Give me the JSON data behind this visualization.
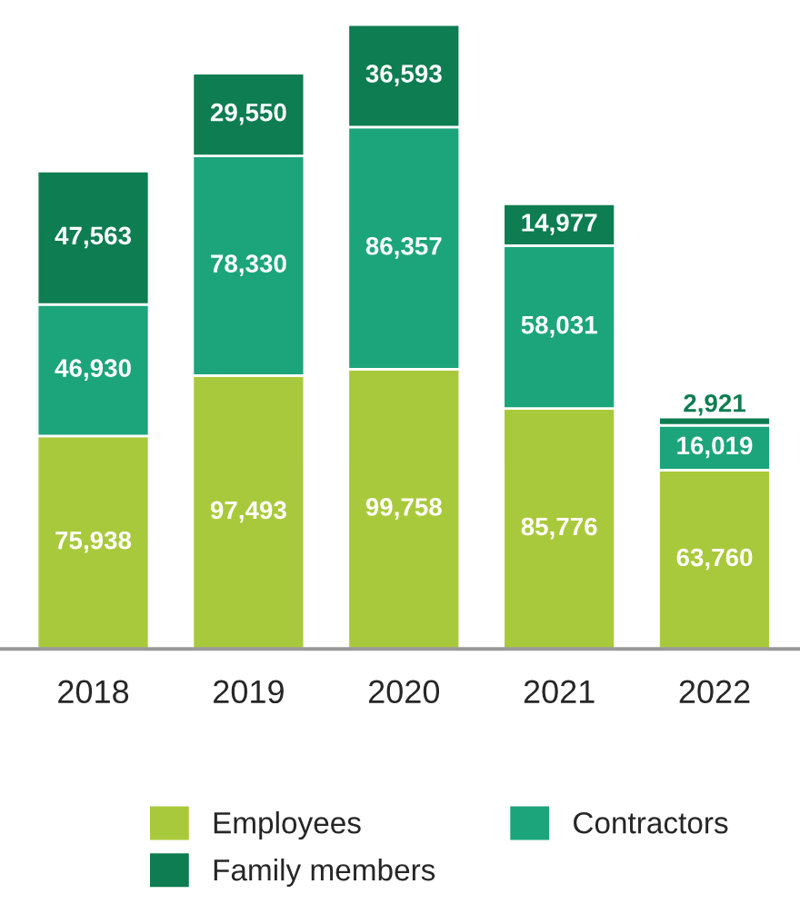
{
  "chart_data": {
    "type": "bar",
    "stacked": true,
    "legend": "bottom",
    "categories": [
      "2018",
      "2019",
      "2020",
      "2021",
      "2022"
    ],
    "series": [
      {
        "name": "Employees",
        "color": "#a9c93c",
        "values": [
          75938,
          97493,
          99758,
          85776,
          63760
        ],
        "value_labels": [
          "75,938",
          "97,493",
          "99,758",
          "85,776",
          "63,760"
        ]
      },
      {
        "name": "Contractors",
        "color": "#1ca57a",
        "values": [
          46930,
          78330,
          86357,
          58031,
          16019
        ],
        "value_labels": [
          "46,930",
          "78,330",
          "86,357",
          "58,031",
          "16,019"
        ]
      },
      {
        "name": "Family members",
        "color": "#0e7d52",
        "values": [
          47563,
          29550,
          36593,
          14977,
          2921
        ],
        "value_labels": [
          "47,563",
          "29,550",
          "36,593",
          "14,977",
          "2,921"
        ]
      }
    ]
  }
}
